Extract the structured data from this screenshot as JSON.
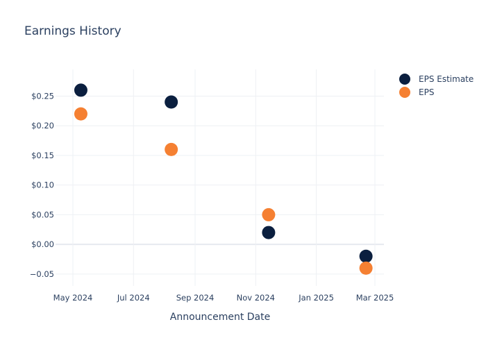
{
  "chart_data": {
    "type": "scatter",
    "title": "Earnings History",
    "xlabel": "Announcement Date",
    "ylabel": "",
    "x_ticks": [
      "May 2024",
      "Jul 2024",
      "Sep 2024",
      "Nov 2024",
      "Jan 2025",
      "Mar 2025"
    ],
    "y_ticks": [
      "$0.25",
      "$0.20",
      "$0.15",
      "$0.10",
      "$0.05",
      "$0.00",
      "−0.05"
    ],
    "ylim": [
      -0.07,
      0.295
    ],
    "legend_position": "top-right",
    "grid": true,
    "series": [
      {
        "name": "EPS Estimate",
        "color": "#0b1f3f",
        "points": [
          {
            "x": "2024-05-09",
            "y": 0.26
          },
          {
            "x": "2024-08-08",
            "y": 0.24
          },
          {
            "x": "2024-11-14",
            "y": 0.02
          },
          {
            "x": "2025-02-20",
            "y": -0.02
          }
        ]
      },
      {
        "name": "EPS",
        "color": "#f58032",
        "points": [
          {
            "x": "2024-05-09",
            "y": 0.22
          },
          {
            "x": "2024-08-08",
            "y": 0.16
          },
          {
            "x": "2024-11-14",
            "y": 0.05
          },
          {
            "x": "2025-02-20",
            "y": -0.04
          }
        ]
      }
    ]
  }
}
